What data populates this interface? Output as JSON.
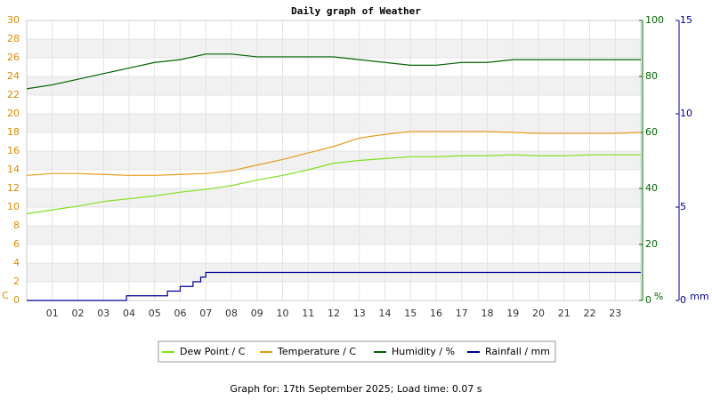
{
  "chart_data": {
    "type": "line",
    "title": "Daily graph of Weather",
    "footer": "Graph for: 17th September 2025; Load time: 0.07 s",
    "y_label": "C",
    "y2_label": "%",
    "y3_label": "mm",
    "xlim": [
      0,
      24
    ],
    "xticks": [
      {
        "value": 1,
        "label": "01"
      },
      {
        "value": 2,
        "label": "02"
      },
      {
        "value": 3,
        "label": "03"
      },
      {
        "value": 4,
        "label": "04"
      },
      {
        "value": 5,
        "label": "05"
      },
      {
        "value": 6,
        "label": "06"
      },
      {
        "value": 7,
        "label": "07"
      },
      {
        "value": 8,
        "label": "08"
      },
      {
        "value": 9,
        "label": "09"
      },
      10,
      11,
      12,
      13,
      14,
      15,
      16,
      17,
      18,
      19,
      20,
      21,
      22,
      23
    ],
    "ylim": [
      0,
      30
    ],
    "yticks": [
      0,
      2,
      4,
      6,
      8,
      10,
      12,
      14,
      16,
      18,
      20,
      22,
      24,
      26,
      28,
      30
    ],
    "y2lim": [
      0,
      100
    ],
    "y2ticks": [
      0,
      20,
      40,
      60,
      80,
      100
    ],
    "y3lim": [
      0,
      15
    ],
    "y3ticks": [
      0,
      5,
      10,
      15
    ],
    "grid": true,
    "x": [
      0,
      1,
      2,
      3,
      4,
      5,
      6,
      7,
      8,
      9,
      10,
      11,
      12,
      13,
      14,
      15,
      16,
      17,
      18,
      19,
      20,
      21,
      22,
      23,
      24
    ],
    "series": [
      {
        "name": "Dew Point / C",
        "color": "#7fe01f",
        "axis": "y",
        "values": [
          9.3,
          9.7,
          10.1,
          10.6,
          10.9,
          11.2,
          11.6,
          11.9,
          12.3,
          12.9,
          13.4,
          14.0,
          14.7,
          15.0,
          15.2,
          15.4,
          15.4,
          15.5,
          15.5,
          15.6,
          15.5,
          15.5,
          15.6,
          15.6,
          15.6
        ]
      },
      {
        "name": "Temperature / C",
        "color": "#e89a1a",
        "axis": "y",
        "values": [
          13.4,
          13.6,
          13.6,
          13.5,
          13.4,
          13.4,
          13.5,
          13.6,
          13.9,
          14.5,
          15.1,
          15.8,
          16.5,
          17.4,
          17.8,
          18.1,
          18.1,
          18.1,
          18.1,
          18.0,
          17.9,
          17.9,
          17.9,
          17.9,
          18.0
        ]
      },
      {
        "name": "Humidity / %",
        "color": "#006400",
        "axis": "y2",
        "values": [
          75.6,
          77,
          79,
          81,
          83,
          85,
          86,
          88,
          88,
          87,
          87,
          87,
          87,
          86,
          85,
          84,
          84,
          85,
          85,
          86,
          86,
          86,
          86,
          86,
          86
        ]
      },
      {
        "name": "Rainfall / mm",
        "color": "#000090",
        "axis": "y3",
        "x": [
          0,
          3.9,
          3.9,
          5.5,
          5.5,
          6,
          6,
          6.5,
          6.5,
          6.8,
          6.8,
          7,
          7,
          24
        ],
        "values": [
          0,
          0,
          0.25,
          0.25,
          0.5,
          0.5,
          0.75,
          0.75,
          1,
          1,
          1.25,
          1.25,
          1.5,
          1.5
        ]
      }
    ]
  }
}
